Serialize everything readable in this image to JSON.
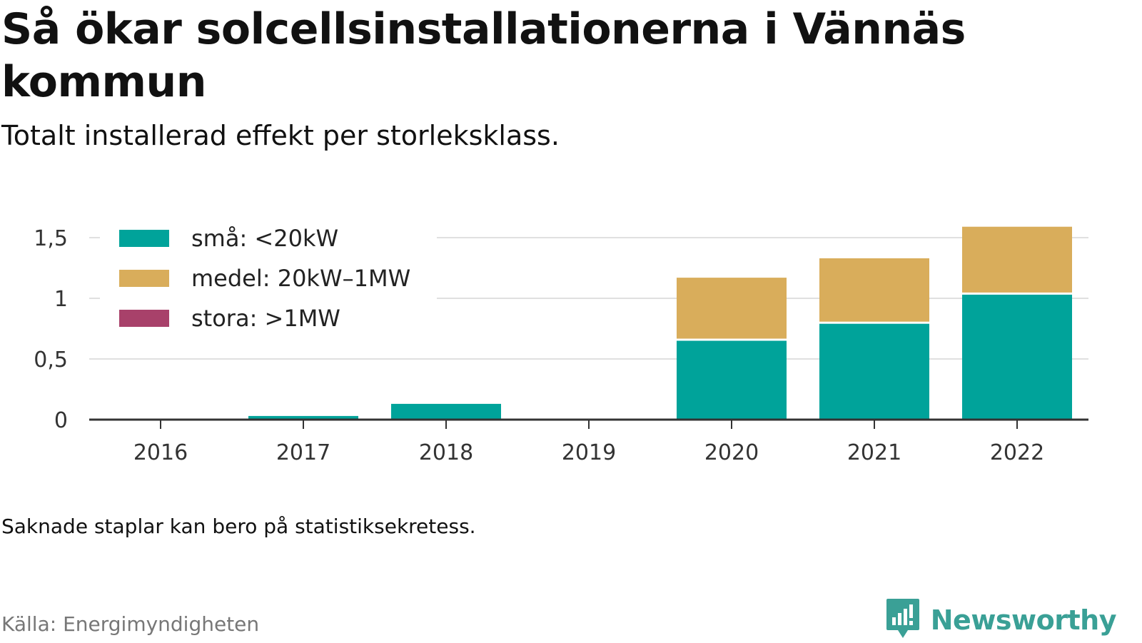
{
  "title": "Så ökar solcellsinstallationerna i Vännäs kommun",
  "subtitle": "Totalt installerad effekt per storleksklass.",
  "note": "Saknade staplar kan bero på statistiksekretess.",
  "source": "Källa: Energimyndigheten",
  "brand": {
    "name": "Newsworthy",
    "icon": "newsworthy-logo-icon",
    "color": "#3aa096"
  },
  "colors": {
    "grid": "#e0e0e0",
    "axis": "#333333",
    "background": "#ffffff"
  },
  "chart_data": {
    "type": "bar",
    "stacked": true,
    "categories": [
      "2016",
      "2017",
      "2018",
      "2019",
      "2020",
      "2021",
      "2022"
    ],
    "series": [
      {
        "name": "små: <20kW",
        "color": "#00a39a",
        "values": [
          0,
          0.03,
          0.13,
          0,
          0.65,
          0.79,
          1.03
        ]
      },
      {
        "name": "medel: 20kW–1MW",
        "color": "#d9ad5b",
        "values": [
          0,
          0,
          0,
          0,
          0.52,
          0.54,
          0.56
        ]
      },
      {
        "name": "stora: >1MW",
        "color": "#a8416a",
        "values": [
          0,
          0,
          0,
          0,
          0,
          0,
          0
        ]
      }
    ],
    "yticks": [
      {
        "value": 0,
        "label": "0"
      },
      {
        "value": 0.5,
        "label": "0,5"
      },
      {
        "value": 1,
        "label": "1"
      },
      {
        "value": 1.5,
        "label": "1,5"
      }
    ],
    "ylim": [
      0,
      1.6
    ],
    "grid": true,
    "legend_position": "top-left"
  }
}
